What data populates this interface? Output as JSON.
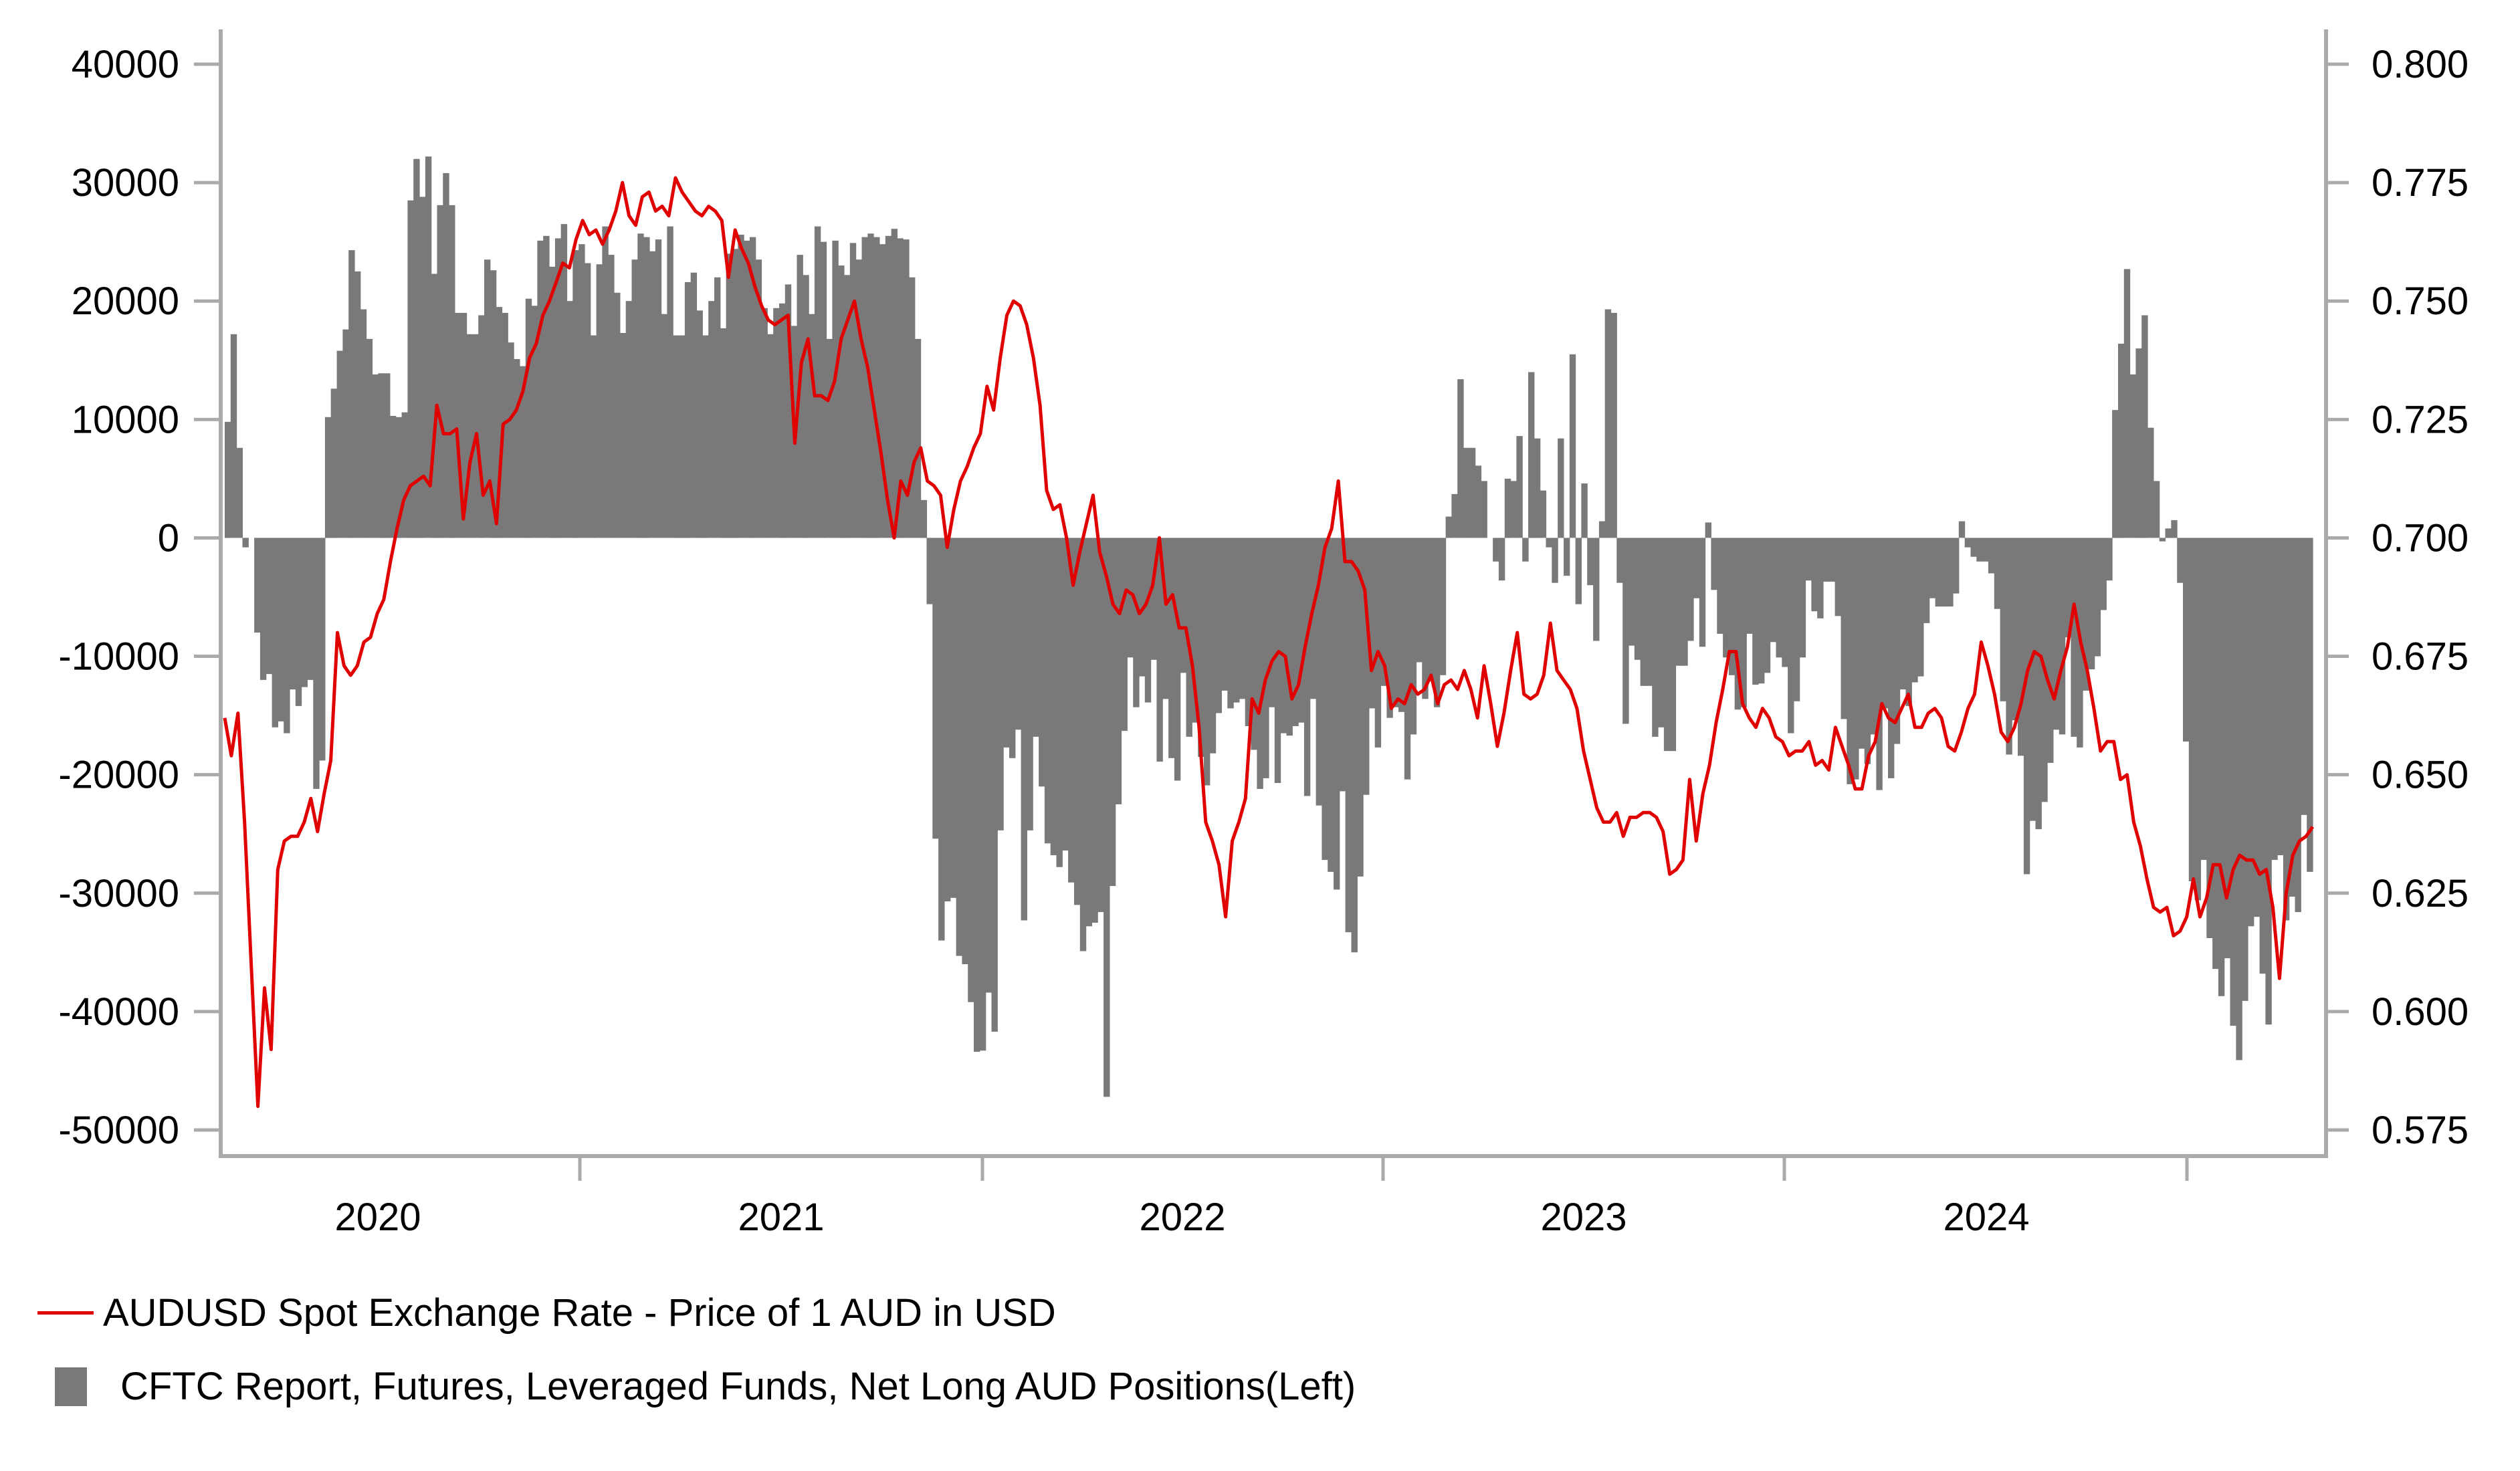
{
  "chart_data": {
    "type": "bar+line",
    "title": "",
    "x_range": [
      "2019-10",
      "2025-03"
    ],
    "x_ticks": [
      "2020",
      "2021",
      "2022",
      "2023",
      "2024"
    ],
    "left_axis": {
      "label": "",
      "ylim": [
        -50000,
        40000
      ],
      "ticks": [
        "40000",
        "30000",
        "20000",
        "10000",
        "0",
        "-10000",
        "-20000",
        "-30000",
        "-40000",
        "-50000"
      ],
      "tick_values": [
        40000,
        30000,
        20000,
        10000,
        0,
        -10000,
        -20000,
        -30000,
        -40000,
        -50000
      ]
    },
    "right_axis": {
      "label": "",
      "ylim": [
        0.575,
        0.8
      ],
      "ticks": [
        "0.800",
        "0.775",
        "0.750",
        "0.725",
        "0.700",
        "0.675",
        "0.650",
        "0.625",
        "0.600",
        "0.575"
      ],
      "tick_values": [
        0.8,
        0.775,
        0.75,
        0.725,
        0.7,
        0.675,
        0.65,
        0.625,
        0.6,
        0.575
      ]
    },
    "grid": false,
    "legend_position": "bottom-left",
    "series": [
      {
        "name": "AUDUSD Spot Exchange Rate - Price of 1 AUD in USD",
        "type": "line",
        "axis": "right",
        "color": "#e00000",
        "values": [
          0.662,
          0.654,
          0.663,
          0.64,
          0.61,
          0.58,
          0.605,
          0.592,
          0.63,
          0.636,
          0.637,
          0.637,
          0.64,
          0.645,
          0.638,
          0.646,
          0.653,
          0.68,
          0.673,
          0.671,
          0.673,
          0.678,
          0.679,
          0.684,
          0.687,
          0.695,
          0.702,
          0.708,
          0.711,
          0.712,
          0.713,
          0.711,
          0.728,
          0.722,
          0.722,
          0.723,
          0.704,
          0.716,
          0.722,
          0.709,
          0.712,
          0.703,
          0.724,
          0.725,
          0.727,
          0.731,
          0.738,
          0.741,
          0.747,
          0.75,
          0.754,
          0.758,
          0.757,
          0.763,
          0.767,
          0.764,
          0.765,
          0.762,
          0.765,
          0.769,
          0.775,
          0.768,
          0.766,
          0.772,
          0.773,
          0.769,
          0.77,
          0.768,
          0.776,
          0.773,
          0.771,
          0.769,
          0.768,
          0.77,
          0.769,
          0.767,
          0.755,
          0.765,
          0.761,
          0.758,
          0.753,
          0.749,
          0.746,
          0.745,
          0.746,
          0.747,
          0.72,
          0.737,
          0.742,
          0.73,
          0.73,
          0.729,
          0.733,
          0.742,
          0.746,
          0.75,
          0.742,
          0.736,
          0.727,
          0.718,
          0.708,
          0.7,
          0.712,
          0.709,
          0.716,
          0.719,
          0.712,
          0.711,
          0.709,
          0.698,
          0.706,
          0.712,
          0.715,
          0.719,
          0.722,
          0.732,
          0.727,
          0.738,
          0.747,
          0.75,
          0.749,
          0.745,
          0.738,
          0.728,
          0.71,
          0.706,
          0.707,
          0.7,
          0.69,
          0.697,
          0.703,
          0.709,
          0.697,
          0.692,
          0.686,
          0.684,
          0.689,
          0.688,
          0.684,
          0.686,
          0.69,
          0.7,
          0.686,
          0.688,
          0.681,
          0.681,
          0.673,
          0.66,
          0.64,
          0.636,
          0.631,
          0.62,
          0.636,
          0.64,
          0.645,
          0.666,
          0.663,
          0.67,
          0.674,
          0.676,
          0.675,
          0.666,
          0.669,
          0.677,
          0.684,
          0.69,
          0.698,
          0.702,
          0.712,
          0.695,
          0.695,
          0.693,
          0.689,
          0.672,
          0.676,
          0.673,
          0.664,
          0.666,
          0.665,
          0.669,
          0.667,
          0.668,
          0.671,
          0.665,
          0.669,
          0.67,
          0.668,
          0.672,
          0.668,
          0.662,
          0.673,
          0.665,
          0.656,
          0.663,
          0.672,
          0.68,
          0.667,
          0.666,
          0.667,
          0.671,
          0.682,
          0.672,
          0.67,
          0.668,
          0.664,
          0.655,
          0.649,
          0.643,
          0.64,
          0.64,
          0.642,
          0.637,
          0.641,
          0.641,
          0.642,
          0.642,
          0.641,
          0.638,
          0.629,
          0.63,
          0.632,
          0.649,
          0.636,
          0.646,
          0.652,
          0.661,
          0.668,
          0.676,
          0.676,
          0.665,
          0.662,
          0.66,
          0.664,
          0.662,
          0.658,
          0.657,
          0.654,
          0.655,
          0.655,
          0.657,
          0.652,
          0.653,
          0.651,
          0.66,
          0.656,
          0.652,
          0.647,
          0.647,
          0.654,
          0.657,
          0.665,
          0.662,
          0.661,
          0.664,
          0.667,
          0.66,
          0.66,
          0.663,
          0.664,
          0.662,
          0.656,
          0.655,
          0.659,
          0.664,
          0.667,
          0.678,
          0.673,
          0.667,
          0.659,
          0.657,
          0.66,
          0.665,
          0.672,
          0.676,
          0.675,
          0.67,
          0.666,
          0.672,
          0.677,
          0.686,
          0.678,
          0.672,
          0.664,
          0.655,
          0.657,
          0.657,
          0.649,
          0.65,
          0.64,
          0.635,
          0.628,
          0.622,
          0.621,
          0.622,
          0.616,
          0.617,
          0.62,
          0.628,
          0.62,
          0.624,
          0.631,
          0.631,
          0.624,
          0.63,
          0.633,
          0.632,
          0.632,
          0.629,
          0.63,
          0.622,
          0.607,
          0.625,
          0.633,
          0.636,
          0.637,
          0.639
        ]
      },
      {
        "name": "CFTC Report, Futures, Leveraged Funds, Net Long AUD Positions(Left)",
        "type": "bar",
        "axis": "left",
        "color": "#7a7879",
        "values": [
          9800,
          17200,
          7600,
          -800,
          0,
          -8000,
          -12000,
          -11500,
          -16000,
          -15500,
          -16500,
          -12800,
          -14200,
          -12600,
          -12000,
          -21200,
          -18800,
          10200,
          12600,
          15800,
          17600,
          24300,
          22500,
          19300,
          16800,
          13800,
          13900,
          13900,
          10300,
          10200,
          10600,
          28500,
          32000,
          28800,
          32200,
          22300,
          28100,
          30800,
          28100,
          19000,
          19000,
          17200,
          17200,
          18800,
          23500,
          22600,
          19500,
          19000,
          16500,
          15100,
          14500,
          20200,
          19600,
          25100,
          25500,
          22900,
          25300,
          26500,
          20000,
          24300,
          24800,
          23200,
          17100,
          23100,
          26300,
          23900,
          20700,
          17300,
          20000,
          23500,
          25700,
          25400,
          24200,
          25200,
          18900,
          26300,
          17100,
          17100,
          21600,
          22400,
          19200,
          17100,
          20000,
          22000,
          17700,
          24000,
          24400,
          25600,
          25100,
          25400,
          23500,
          19400,
          17200,
          19400,
          19800,
          21400,
          17900,
          23900,
          22200,
          18900,
          26300,
          25000,
          16800,
          25100,
          23000,
          22200,
          24900,
          23500,
          25400,
          25700,
          25400,
          24800,
          25500,
          26100,
          25300,
          25200,
          22000,
          16800,
          3200,
          -5600,
          -25400,
          -34000,
          -30700,
          -30400,
          -35300,
          -36000,
          -39200,
          -43400,
          -43300,
          -38400,
          -41700,
          -24700,
          -17700,
          -18600,
          -16200,
          -32300,
          -24700,
          -16800,
          -21000,
          -25800,
          -26800,
          -27800,
          -26400,
          -29100,
          -31000,
          -34900,
          -32800,
          -32500,
          -31600,
          -47200,
          -29400,
          -22500,
          -16300,
          -10100,
          -14300,
          -11700,
          -13900,
          -10300,
          -18900,
          -13600,
          -18600,
          -20500,
          -11400,
          -16800,
          -15600,
          -18500,
          -20900,
          -18200,
          -14800,
          -12900,
          -14400,
          -13900,
          -13600,
          -15900,
          -17900,
          -21200,
          -20300,
          -14300,
          -20700,
          -16500,
          -16700,
          -15900,
          -15600,
          -21800,
          -13600,
          -22600,
          -27200,
          -28200,
          -29700,
          -21400,
          -33300,
          -35000,
          -28600,
          -21700,
          -14400,
          -17700,
          -12500,
          -15200,
          -14300,
          -14700,
          -20400,
          -16600,
          -10500,
          -13600,
          -12100,
          -14300,
          -11600,
          1800,
          3700,
          13400,
          7600,
          7600,
          6100,
          4800,
          0,
          -2000,
          -3600,
          5000,
          4800,
          8600,
          -2000,
          14000,
          8400,
          4000,
          -800,
          -3800,
          8400,
          -3200,
          15500,
          -5600,
          4600,
          -4000,
          -8700,
          1400,
          19300,
          19000,
          -3800,
          -15700,
          -9100,
          -10300,
          -12500,
          -12500,
          -16800,
          -16000,
          -18000,
          -18000,
          -10800,
          -10800,
          -8700,
          -5100,
          -9200,
          1300,
          -4400,
          -8100,
          -10100,
          -11600,
          -14500,
          -14300,
          -8100,
          -12400,
          -12300,
          -11400,
          -8800,
          -10100,
          -10900,
          -16500,
          -13800,
          -10100,
          -3600,
          -6200,
          -6800,
          -3700,
          -3700,
          -6600,
          -15300,
          -20800,
          -20400,
          -17800,
          -19100,
          -16600,
          -21300,
          -14400,
          -20300,
          -17400,
          -12800,
          -14200,
          -12200,
          -11700,
          -7200,
          -5100,
          -5800,
          -5800,
          -5800,
          -4700,
          1400,
          -800,
          -1600,
          -2000,
          -2000,
          -3000,
          -6000,
          -13800,
          -18300,
          -15400,
          -18400,
          -28400,
          -23900,
          -24600,
          -22300,
          -19000,
          -16200,
          -16600,
          -8400,
          -16800,
          -17700,
          -12900,
          -11100,
          -10000,
          -6100,
          -3600,
          10800,
          16400,
          22700,
          13800,
          16000,
          18800,
          9300,
          4800,
          -300,
          800,
          1500,
          -3800,
          -17200,
          -29000,
          -30600,
          -27200,
          -33800,
          -36400,
          -38700,
          -35500,
          -41200,
          -44100,
          -39100,
          -32800,
          -32000,
          -36800,
          -41100,
          -27200,
          -26800,
          -32300,
          -30300,
          -31600,
          -23400,
          -28200
        ]
      }
    ]
  },
  "legend": {
    "line_label": "AUDUSD Spot Exchange Rate - Price of 1 AUD in USD",
    "bar_label": "CFTC Report, Futures, Leveraged Funds, Net Long AUD Positions(Left)"
  }
}
